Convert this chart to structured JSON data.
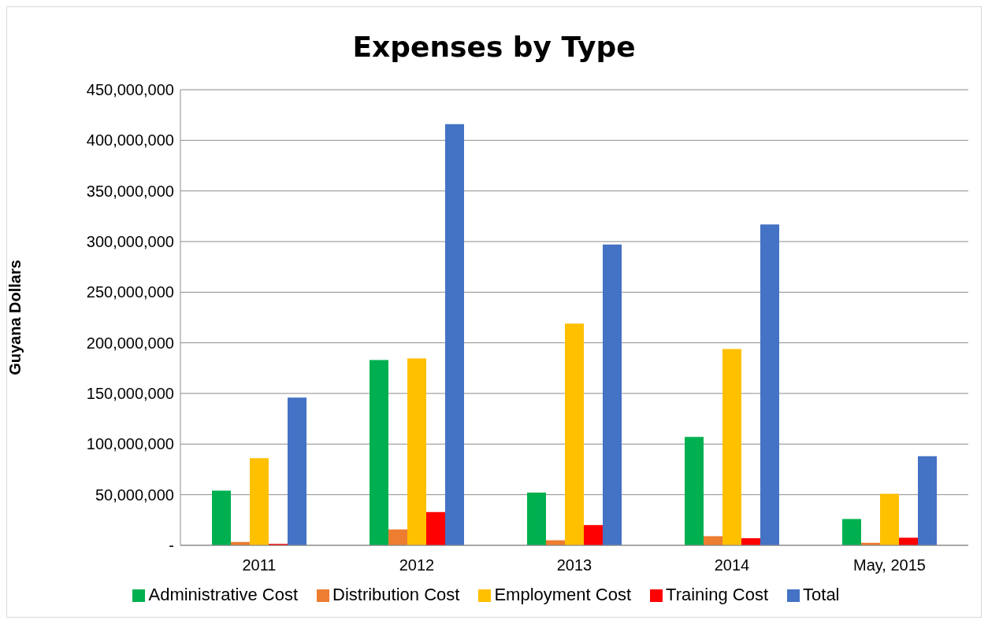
{
  "chart_data": {
    "type": "bar",
    "title": "Expenses by Type",
    "ylabel": "Guyana Dollars",
    "categories": [
      "2011",
      "2012",
      "2013",
      "2014",
      "May, 2015"
    ],
    "series": [
      {
        "name": "Administrative Cost",
        "color": "#00b050",
        "values": [
          54000000,
          183000000,
          52000000,
          107000000,
          26000000
        ]
      },
      {
        "name": "Distribution Cost",
        "color": "#ed7d31",
        "values": [
          3300000,
          15700000,
          5000000,
          9000000,
          2500000
        ]
      },
      {
        "name": "Employment Cost",
        "color": "#ffc000",
        "values": [
          86000000,
          184500000,
          219000000,
          194000000,
          51000000
        ]
      },
      {
        "name": "Training Cost",
        "color": "#ff0000",
        "values": [
          1400000,
          32900000,
          20000000,
          7000000,
          7500000
        ]
      },
      {
        "name": "Total",
        "color": "#4472c4",
        "values": [
          146000000,
          416000000,
          297000000,
          317000000,
          88000000
        ]
      }
    ],
    "ylim": [
      0,
      450000000
    ],
    "yticks": [
      {
        "value": 0,
        "label": "-"
      },
      {
        "value": 50000000,
        "label": "50,000,000"
      },
      {
        "value": 100000000,
        "label": "100,000,000"
      },
      {
        "value": 150000000,
        "label": "150,000,000"
      },
      {
        "value": 200000000,
        "label": "200,000,000"
      },
      {
        "value": 250000000,
        "label": "250,000,000"
      },
      {
        "value": 300000000,
        "label": "300,000,000"
      },
      {
        "value": 350000000,
        "label": "350,000,000"
      },
      {
        "value": 400000000,
        "label": "400,000,000"
      },
      {
        "value": 450000000,
        "label": "450,000,000"
      }
    ],
    "grid": "y",
    "legend": "bottom"
  }
}
